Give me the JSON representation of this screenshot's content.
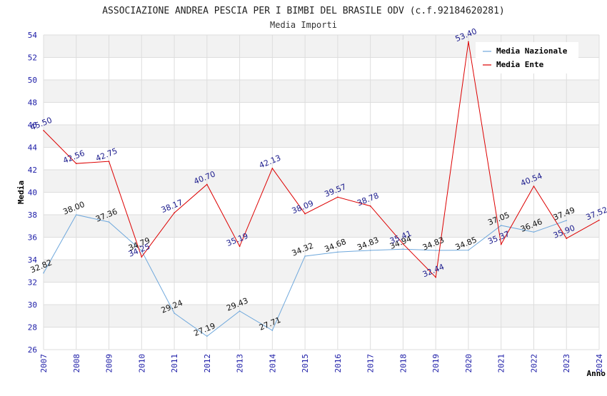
{
  "chart_data": {
    "type": "line",
    "title": "ASSOCIAZIONE ANDREA PESCIA PER I BIMBI DEL BRASILE ODV (c.f.92184620281)",
    "subtitle": "Media Importi",
    "ylabel": "Media",
    "xlabel": "Anno",
    "ylim": [
      26,
      54
    ],
    "yticks": [
      26,
      28,
      30,
      32,
      34,
      36,
      38,
      40,
      42,
      44,
      46,
      48,
      50,
      52,
      54
    ],
    "x": [
      2007,
      2008,
      2009,
      2010,
      2011,
      2012,
      2013,
      2014,
      2015,
      2016,
      2017,
      2018,
      2019,
      2020,
      2021,
      2022,
      2023,
      2024
    ],
    "grid": true,
    "legend_position": "top-right",
    "series": [
      {
        "name": "Media Nazionale",
        "color": "#6fa8dc",
        "label_color": "#111111",
        "x": [
          2007,
          2008,
          2009,
          2010,
          2011,
          2012,
          2013,
          2014,
          2015,
          2016,
          2017,
          2018,
          2019,
          2020,
          2021,
          2022,
          2023
        ],
        "values": [
          32.82,
          38.0,
          37.36,
          34.79,
          29.24,
          27.19,
          29.43,
          27.71,
          34.32,
          34.68,
          34.83,
          34.94,
          34.83,
          34.85,
          37.05,
          36.46,
          37.49
        ],
        "labels": [
          "32.82",
          "38.00",
          "37.36",
          "34.79",
          "29.24",
          "27.19",
          "29.43",
          "27.71",
          "34.32",
          "34.68",
          "34.83",
          "34.94",
          "34.83",
          "34.85",
          "37.05",
          "36.46",
          "37.49"
        ]
      },
      {
        "name": "Media Ente",
        "color": "#dd0000",
        "label_color": "#1a1a8c",
        "x": [
          2007,
          2008,
          2009,
          2010,
          2011,
          2012,
          2013,
          2014,
          2015,
          2016,
          2017,
          2018,
          2019,
          2020,
          2021,
          2022,
          2023,
          2024
        ],
        "values": [
          45.5,
          42.56,
          42.75,
          34.25,
          38.17,
          40.7,
          35.19,
          42.13,
          38.09,
          39.57,
          38.78,
          35.41,
          32.44,
          53.4,
          35.37,
          40.54,
          35.9,
          37.52
        ],
        "labels": [
          "45.50",
          "42.56",
          "42.75",
          "34.25",
          "38.17",
          "40.70",
          "35.19",
          "42.13",
          "38.09",
          "39.57",
          "38.78",
          "35.41",
          "32.44",
          "53.40",
          "35.37",
          "40.54",
          "35.90",
          "37.52"
        ]
      }
    ]
  }
}
